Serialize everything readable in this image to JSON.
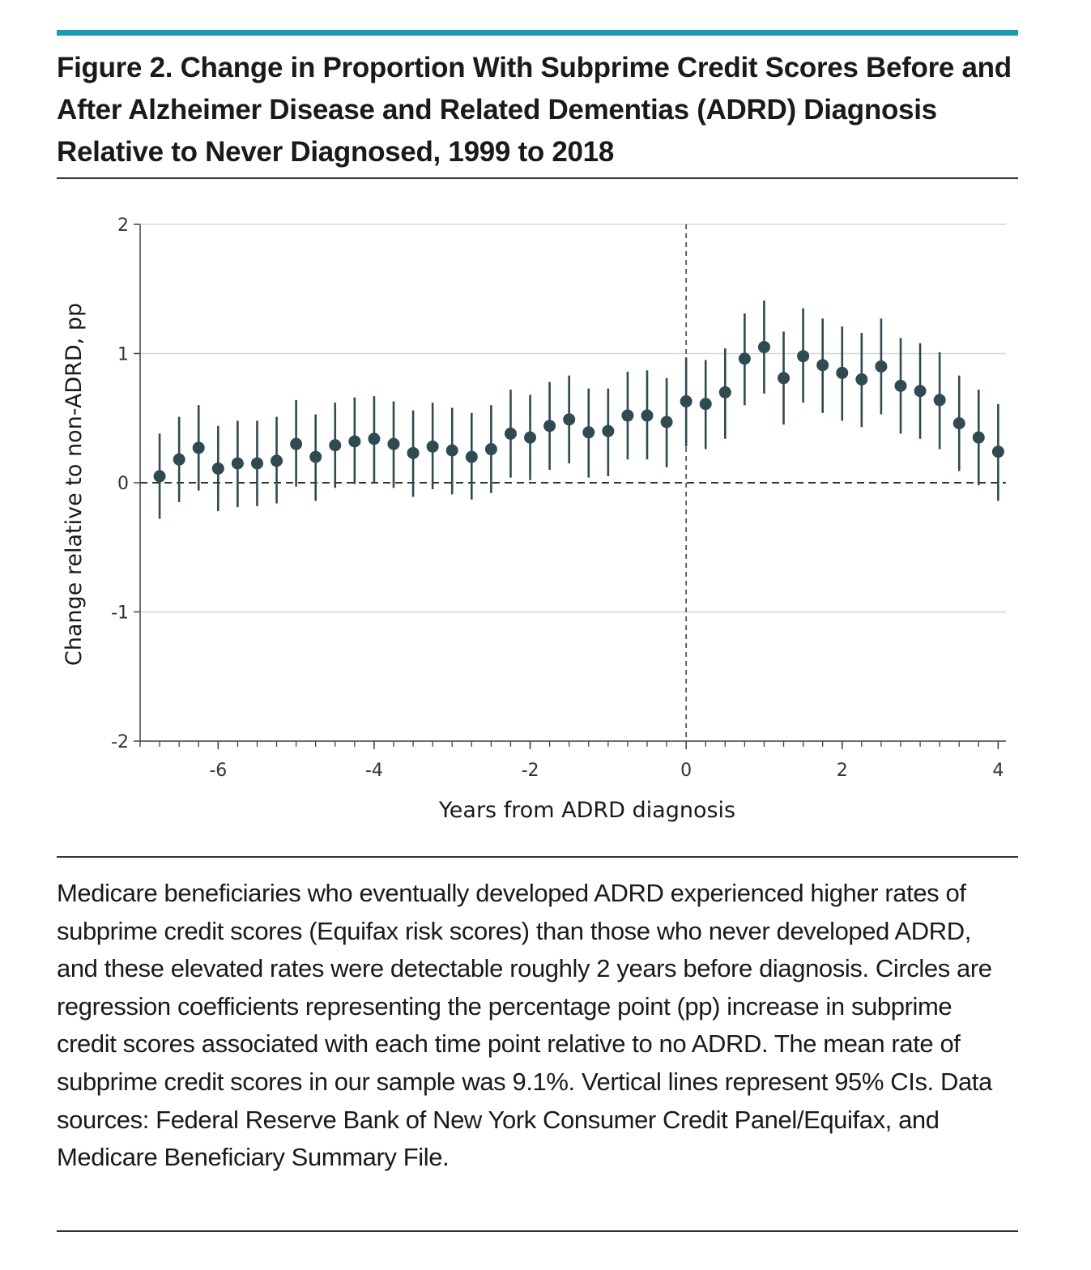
{
  "figure": {
    "title": "Figure 2. Change in Proportion With Subprime Credit Scores Before and After Alzheimer Disease and Related Dementias (ADRD) Diagnosis Relative to Never Diagnosed, 1999 to 2018",
    "caption": "Medicare beneficiaries who eventually developed ADRD experienced higher rates of subprime credit scores (Equifax risk scores) than those who never developed ADRD, and these elevated rates were detectable roughly 2 years before diagnosis. Circles are regression coefficients representing the percentage point (pp) increase in subprime credit scores associated with each time point relative to no ADRD. The mean rate of subprime credit scores in our sample was 9.1%. Vertical lines represent 95% CIs. Data sources: Federal Reserve Bank of New York Consumer Credit Panel/Equifax, and Medicare Beneficiary Summary File.",
    "accent_color": "#1a9ab5"
  },
  "chart_data": {
    "type": "scatter",
    "xlabel": "Years from ADRD diagnosis",
    "ylabel": "Change relative to non-ADRD, pp",
    "xlim": [
      -7,
      4.1
    ],
    "ylim": [
      -2,
      2
    ],
    "x_ticks": [
      -6,
      -4,
      -2,
      0,
      2,
      4
    ],
    "y_ticks": [
      -2,
      -1,
      0,
      1,
      2
    ],
    "grid": "horizontal",
    "reference_lines": {
      "y": 0,
      "x": 0,
      "style": "dashed"
    },
    "point_color": "#2f4a50",
    "points": [
      {
        "x": -6.75,
        "y": 0.05,
        "lo": -0.28,
        "hi": 0.38
      },
      {
        "x": -6.5,
        "y": 0.18,
        "lo": -0.15,
        "hi": 0.51
      },
      {
        "x": -6.25,
        "y": 0.27,
        "lo": -0.06,
        "hi": 0.6
      },
      {
        "x": -6.0,
        "y": 0.11,
        "lo": -0.22,
        "hi": 0.44
      },
      {
        "x": -5.75,
        "y": 0.15,
        "lo": -0.19,
        "hi": 0.48
      },
      {
        "x": -5.5,
        "y": 0.15,
        "lo": -0.18,
        "hi": 0.48
      },
      {
        "x": -5.25,
        "y": 0.17,
        "lo": -0.16,
        "hi": 0.51
      },
      {
        "x": -5.0,
        "y": 0.3,
        "lo": -0.03,
        "hi": 0.64
      },
      {
        "x": -4.75,
        "y": 0.2,
        "lo": -0.14,
        "hi": 0.53
      },
      {
        "x": -4.5,
        "y": 0.29,
        "lo": -0.04,
        "hi": 0.62
      },
      {
        "x": -4.25,
        "y": 0.32,
        "lo": -0.01,
        "hi": 0.66
      },
      {
        "x": -4.0,
        "y": 0.34,
        "lo": 0.0,
        "hi": 0.67
      },
      {
        "x": -3.75,
        "y": 0.3,
        "lo": -0.04,
        "hi": 0.63
      },
      {
        "x": -3.5,
        "y": 0.23,
        "lo": -0.11,
        "hi": 0.56
      },
      {
        "x": -3.25,
        "y": 0.28,
        "lo": -0.05,
        "hi": 0.62
      },
      {
        "x": -3.0,
        "y": 0.25,
        "lo": -0.09,
        "hi": 0.58
      },
      {
        "x": -2.75,
        "y": 0.2,
        "lo": -0.13,
        "hi": 0.54
      },
      {
        "x": -2.5,
        "y": 0.26,
        "lo": -0.08,
        "hi": 0.6
      },
      {
        "x": -2.25,
        "y": 0.38,
        "lo": 0.04,
        "hi": 0.72
      },
      {
        "x": -2.0,
        "y": 0.35,
        "lo": 0.02,
        "hi": 0.68
      },
      {
        "x": -1.75,
        "y": 0.44,
        "lo": 0.1,
        "hi": 0.78
      },
      {
        "x": -1.5,
        "y": 0.49,
        "lo": 0.15,
        "hi": 0.83
      },
      {
        "x": -1.25,
        "y": 0.39,
        "lo": 0.04,
        "hi": 0.73
      },
      {
        "x": -1.0,
        "y": 0.4,
        "lo": 0.05,
        "hi": 0.73
      },
      {
        "x": -0.75,
        "y": 0.52,
        "lo": 0.18,
        "hi": 0.86
      },
      {
        "x": -0.5,
        "y": 0.52,
        "lo": 0.18,
        "hi": 0.87
      },
      {
        "x": -0.25,
        "y": 0.47,
        "lo": 0.12,
        "hi": 0.81
      },
      {
        "x": 0.0,
        "y": 0.63,
        "lo": 0.28,
        "hi": 0.97
      },
      {
        "x": 0.25,
        "y": 0.61,
        "lo": 0.26,
        "hi": 0.95
      },
      {
        "x": 0.5,
        "y": 0.7,
        "lo": 0.34,
        "hi": 1.04
      },
      {
        "x": 0.75,
        "y": 0.96,
        "lo": 0.6,
        "hi": 1.31
      },
      {
        "x": 1.0,
        "y": 1.05,
        "lo": 0.69,
        "hi": 1.41
      },
      {
        "x": 1.25,
        "y": 0.81,
        "lo": 0.45,
        "hi": 1.17
      },
      {
        "x": 1.5,
        "y": 0.98,
        "lo": 0.62,
        "hi": 1.35
      },
      {
        "x": 1.75,
        "y": 0.91,
        "lo": 0.54,
        "hi": 1.27
      },
      {
        "x": 2.0,
        "y": 0.85,
        "lo": 0.48,
        "hi": 1.21
      },
      {
        "x": 2.25,
        "y": 0.8,
        "lo": 0.43,
        "hi": 1.16
      },
      {
        "x": 2.5,
        "y": 0.9,
        "lo": 0.53,
        "hi": 1.27
      },
      {
        "x": 2.75,
        "y": 0.75,
        "lo": 0.38,
        "hi": 1.12
      },
      {
        "x": 3.0,
        "y": 0.71,
        "lo": 0.34,
        "hi": 1.08
      },
      {
        "x": 3.25,
        "y": 0.64,
        "lo": 0.26,
        "hi": 1.01
      },
      {
        "x": 3.5,
        "y": 0.46,
        "lo": 0.09,
        "hi": 0.83
      },
      {
        "x": 3.75,
        "y": 0.35,
        "lo": -0.02,
        "hi": 0.72
      },
      {
        "x": 4.0,
        "y": 0.24,
        "lo": -0.14,
        "hi": 0.61
      }
    ]
  }
}
